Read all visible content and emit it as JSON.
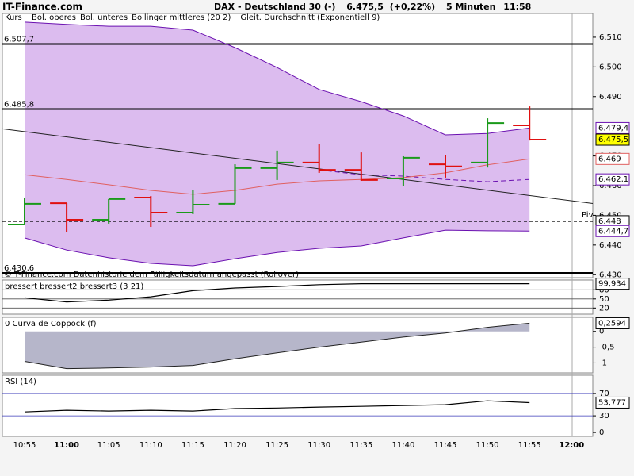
{
  "header": {
    "site": "IT-Finance.com",
    "instrument": "DAX - Deutschland 30 (-)",
    "price": "6.475,5",
    "change": "(+0,22%)",
    "interval": "5 Minuten",
    "time": "11:58"
  },
  "footnote": "©IT-Finance.com Datenhistorie dem Fälligkeitsdatum angepasst (Rollover)",
  "chart_data": [
    {
      "type": "ohlc",
      "categories": [
        "10:55",
        "11:00",
        "11:05",
        "11:10",
        "11:15",
        "11:20",
        "11:25",
        "11:30",
        "11:35",
        "11:40",
        "11:45",
        "11:50",
        "11:55",
        "12:00"
      ],
      "ylim": [
        6429,
        6518
      ],
      "yticks": [
        {
          "value": 6510,
          "label": "6.510"
        },
        {
          "value": 6500,
          "label": "6.500"
        },
        {
          "value": 6490,
          "label": "6.490"
        },
        {
          "value": 6470,
          "label": "6.470"
        },
        {
          "value": 6460,
          "label": "6.460"
        },
        {
          "value": 6450,
          "label": "6.450"
        },
        {
          "value": 6440,
          "label": "6.440"
        },
        {
          "value": 6430,
          "label": "6.430"
        }
      ],
      "ohlc": {
        "name": "Kurs",
        "up_color": "#1a9a1a",
        "down_color": "#e01010",
        "open": [
          6446.9,
          6454.1,
          6448.5,
          6456.0,
          6450.9,
          6453.9,
          6465.9,
          6467.8,
          6465.3,
          6462.4,
          6467.2,
          6467.8,
          6480.3,
          null
        ],
        "high": [
          6456.0,
          6454.1,
          6455.5,
          6456.5,
          6458.4,
          6467.2,
          6471.8,
          6473.9,
          6471.2,
          6469.9,
          6470.4,
          6482.7,
          6486.7,
          null
        ],
        "low": [
          6446.9,
          6444.5,
          6447.2,
          6446.1,
          6450.4,
          6453.9,
          6461.9,
          6464.3,
          6461.6,
          6460.0,
          6462.7,
          6466.1,
          6475.2,
          null
        ],
        "close": [
          6453.9,
          6448.5,
          6455.5,
          6450.9,
          6453.6,
          6465.9,
          6467.8,
          6465.3,
          6461.9,
          6469.4,
          6466.5,
          6481.1,
          6475.5,
          null
        ],
        "value_labels": [
          null,
          null,
          null,
          null,
          null,
          null,
          null,
          null,
          null,
          null,
          null,
          null,
          "6.475,5",
          null
        ]
      },
      "band_fill": "#dcbcef",
      "series": [
        {
          "name": "Bol. oberes",
          "color": "#6a10b0",
          "values": [
            6515.1,
            6514.3,
            6513.7,
            6513.7,
            6512.4,
            6506.5,
            6499.8,
            6492.4,
            6488.3,
            6483.5,
            6477.1,
            6477.6,
            6479.4,
            null
          ],
          "value_labels": [
            null,
            null,
            null,
            null,
            null,
            null,
            null,
            null,
            null,
            null,
            null,
            null,
            "6.479,4",
            null
          ]
        },
        {
          "name": "Bol. unteres",
          "color": "#6a10b0",
          "values": [
            6442.4,
            6438.3,
            6435.7,
            6433.8,
            6433.0,
            6435.4,
            6437.5,
            6438.9,
            6439.7,
            6442.4,
            6445.0,
            6444.8,
            6444.7,
            null
          ],
          "value_labels": [
            null,
            null,
            null,
            null,
            null,
            null,
            null,
            null,
            null,
            null,
            null,
            null,
            "6.444,7",
            null
          ]
        },
        {
          "name": "Bollinger mittleres (20 2)",
          "color": "#6a10b0",
          "dashed": true,
          "values": [
            null,
            null,
            null,
            null,
            null,
            null,
            null,
            6465.3,
            6463.7,
            6463.2,
            6462.1,
            6461.3,
            6462.1,
            null
          ],
          "value_labels": [
            null,
            null,
            null,
            null,
            null,
            null,
            null,
            null,
            null,
            null,
            null,
            null,
            "6.462,1",
            null
          ]
        },
        {
          "name": "Gleit. Durchschnitt (Exponentiell 9)",
          "color": "#e06060",
          "values": [
            6463.7,
            6462.1,
            6460.3,
            6458.4,
            6457.1,
            6458.4,
            6460.5,
            6461.6,
            6462.1,
            6462.7,
            6464.3,
            6467.0,
            6469.0,
            null
          ],
          "value_labels": [
            null,
            null,
            null,
            null,
            null,
            null,
            null,
            null,
            null,
            null,
            null,
            null,
            "6.469",
            null
          ]
        }
      ],
      "trend_line": {
        "start": 6478.2,
        "end": 6454.9
      },
      "levels": [
        {
          "value": 6507.7,
          "label": "6.507,7"
        },
        {
          "value": 6485.8,
          "label": "6.485,8"
        },
        {
          "value": 6430.6,
          "label": "6.430,6"
        },
        {
          "name": "Piv",
          "value": 6448,
          "label": "6.448",
          "dashed": true
        }
      ]
    },
    {
      "type": "line",
      "title": "bressert bressert2 bressert3 (3 21)",
      "ylim": [
        0,
        112
      ],
      "yticks": [
        80,
        50,
        20
      ],
      "grid_color": "#555555",
      "series": [
        {
          "color": "#000000",
          "values": [
            54,
            40,
            46,
            57,
            77,
            86,
            91,
            97,
            99.9,
            99.9,
            99.9,
            99.9,
            99.934,
            null
          ],
          "value_labels": [
            null,
            null,
            null,
            null,
            null,
            null,
            null,
            null,
            null,
            null,
            null,
            null,
            "99,934",
            null
          ]
        }
      ]
    },
    {
      "type": "area",
      "title": "0 Curva de Coppock (f)",
      "ylim": [
        -1.316,
        0.447
      ],
      "yticks": [
        0,
        {
          "value": -0.5,
          "label": "-0,5"
        },
        -1
      ],
      "fill": "#b6b6ca",
      "series": [
        {
          "color": "#222222",
          "values": [
            -0.95,
            -1.18,
            -1.16,
            -1.13,
            -1.08,
            -0.87,
            -0.68,
            -0.5,
            -0.34,
            -0.18,
            -0.05,
            0.13,
            0.2594,
            null
          ],
          "value_labels": [
            null,
            null,
            null,
            null,
            null,
            null,
            null,
            null,
            null,
            null,
            null,
            null,
            "0,2594",
            null
          ]
        }
      ]
    },
    {
      "type": "line",
      "title": "RSI (14)",
      "ylim": [
        -7,
        103
      ],
      "yticks": [
        70,
        30,
        0
      ],
      "grid_color": "#3a3ab8",
      "grid_ticks": [
        70,
        30
      ],
      "series": [
        {
          "color": "#000000",
          "values": [
            37,
            40,
            38.6,
            40,
            38.6,
            43,
            44,
            45.7,
            47,
            48.6,
            50,
            57,
            53.777,
            null
          ],
          "value_labels": [
            null,
            null,
            null,
            null,
            null,
            null,
            null,
            null,
            null,
            null,
            null,
            null,
            "53,777",
            null
          ]
        }
      ]
    }
  ]
}
